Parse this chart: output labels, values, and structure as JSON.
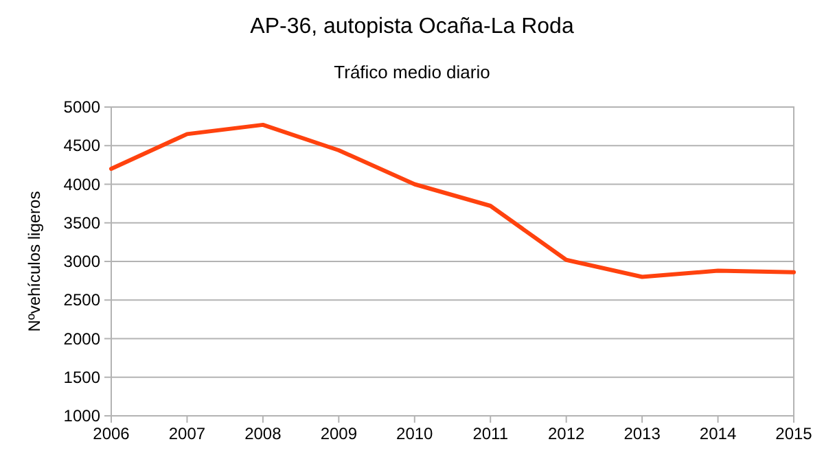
{
  "chart_data": {
    "type": "line",
    "title": "AP-36, autopista Ocaña-La Roda",
    "subtitle": "Tráfico medio diario",
    "ylabel": "Nºvehículos ligeros",
    "x": [
      2006,
      2007,
      2008,
      2009,
      2010,
      2011,
      2012,
      2013,
      2014,
      2015
    ],
    "series": [
      {
        "color": "#ff420e",
        "values": [
          4200,
          4650,
          4770,
          4440,
          4000,
          3720,
          3020,
          2800,
          2880,
          2860
        ]
      }
    ],
    "xlim": [
      2006,
      2015
    ],
    "xticks": [
      2006,
      2007,
      2008,
      2009,
      2010,
      2011,
      2012,
      2013,
      2014,
      2015
    ],
    "ylim": [
      1000,
      5000
    ],
    "yticks": [
      1000,
      1500,
      2000,
      2500,
      3000,
      3500,
      4000,
      4500,
      5000
    ],
    "grid": "y",
    "marker": "none",
    "line_style": "solid"
  }
}
